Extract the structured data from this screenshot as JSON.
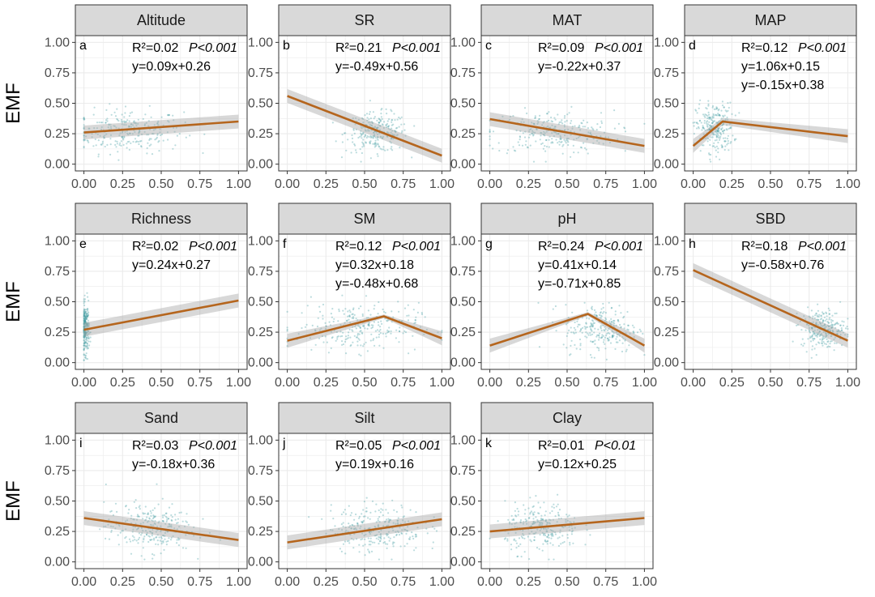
{
  "colors": {
    "point": "#3f9aa0",
    "fit_line": "#b5651d",
    "ci_band": "#a8a8a8",
    "strip_fill": "#d9d9d9",
    "grid": "#ebebeb"
  },
  "y_label": "EMF",
  "chart_data": {
    "type": "scatter",
    "facets": true,
    "x_ticks": [
      "0.00",
      "0.25",
      "0.50",
      "0.75",
      "1.00"
    ],
    "y_ticks": [
      "0.00",
      "0.25",
      "0.50",
      "0.75",
      "1.00"
    ],
    "xlim": [
      0,
      1
    ],
    "ylim": [
      0,
      1
    ],
    "grid": true,
    "panels": [
      {
        "title": "Altitude",
        "letter": "a",
        "r2": "R²=0.02",
        "p": "P<0.001",
        "equations": [
          "y=0.09x+0.26"
        ],
        "fit": [
          [
            0,
            0.26
          ],
          [
            1,
            0.35
          ]
        ],
        "points": {
          "cx": 0.28,
          "sx": 0.18,
          "cy": 0.27,
          "sy": 0.09
        }
      },
      {
        "title": "SR",
        "letter": "b",
        "r2": "R²=0.21",
        "p": "P<0.001",
        "equations": [
          "y=-0.49x+0.56"
        ],
        "fit": [
          [
            0,
            0.56
          ],
          [
            1,
            0.07
          ]
        ],
        "points": {
          "cx": 0.58,
          "sx": 0.1,
          "cy": 0.26,
          "sy": 0.08
        }
      },
      {
        "title": "MAT",
        "letter": "c",
        "r2": "R²=0.09",
        "p": "P<0.001",
        "equations": [
          "y=-0.22x+0.37"
        ],
        "fit": [
          [
            0,
            0.37
          ],
          [
            1,
            0.15
          ]
        ],
        "points": {
          "cx": 0.4,
          "sx": 0.2,
          "cy": 0.26,
          "sy": 0.09
        }
      },
      {
        "title": "MAP",
        "letter": "d",
        "r2": "R²=0.12",
        "p": "P<0.001",
        "equations": [
          "y=1.06x+0.15",
          "y=-0.15x+0.38"
        ],
        "fit": [
          [
            0,
            0.15
          ],
          [
            0.19,
            0.35
          ],
          [
            1,
            0.23
          ]
        ],
        "points": {
          "cx": 0.14,
          "sx": 0.06,
          "cy": 0.3,
          "sy": 0.1
        }
      },
      {
        "title": "Richness",
        "letter": "e",
        "r2": "R²=0.02",
        "p": "P<0.001",
        "equations": [
          "y=0.24x+0.27"
        ],
        "fit": [
          [
            0,
            0.27
          ],
          [
            1,
            0.51
          ]
        ],
        "points": {
          "cx": 0.01,
          "sx": 0.012,
          "cy": 0.28,
          "sy": 0.1
        }
      },
      {
        "title": "SM",
        "letter": "f",
        "r2": "R²=0.12",
        "p": "P<0.001",
        "equations": [
          "y=0.32x+0.18",
          "y=-0.48x+0.68"
        ],
        "fit": [
          [
            0,
            0.18
          ],
          [
            0.625,
            0.38
          ],
          [
            1,
            0.2
          ]
        ],
        "points": {
          "cx": 0.45,
          "sx": 0.2,
          "cy": 0.29,
          "sy": 0.1
        }
      },
      {
        "title": "pH",
        "letter": "g",
        "r2": "R²=0.24",
        "p": "P<0.001",
        "equations": [
          "y=0.41x+0.14",
          "y=-0.71x+0.85"
        ],
        "fit": [
          [
            0,
            0.14
          ],
          [
            0.634,
            0.4
          ],
          [
            1,
            0.14
          ]
        ],
        "points": {
          "cx": 0.72,
          "sx": 0.12,
          "cy": 0.28,
          "sy": 0.1
        }
      },
      {
        "title": "SBD",
        "letter": "h",
        "r2": "R²=0.18",
        "p": "P<0.001",
        "equations": [
          "y=-0.58x+0.76"
        ],
        "fit": [
          [
            0,
            0.76
          ],
          [
            1,
            0.18
          ]
        ],
        "points": {
          "cx": 0.84,
          "sx": 0.07,
          "cy": 0.28,
          "sy": 0.08
        }
      },
      {
        "title": "Sand",
        "letter": "i",
        "r2": "R²=0.03",
        "p": "P<0.001",
        "equations": [
          "y=-0.18x+0.36"
        ],
        "fit": [
          [
            0,
            0.36
          ],
          [
            1,
            0.18
          ]
        ],
        "points": {
          "cx": 0.42,
          "sx": 0.14,
          "cy": 0.28,
          "sy": 0.1
        }
      },
      {
        "title": "Silt",
        "letter": "j",
        "r2": "R²=0.05",
        "p": "P<0.001",
        "equations": [
          "y=0.19x+0.16"
        ],
        "fit": [
          [
            0,
            0.16
          ],
          [
            1,
            0.35
          ]
        ],
        "points": {
          "cx": 0.58,
          "sx": 0.15,
          "cy": 0.28,
          "sy": 0.1
        }
      },
      {
        "title": "Clay",
        "letter": "k",
        "r2": "R²=0.01",
        "p": "P<0.01",
        "equations": [
          "y=0.12x+0.25"
        ],
        "fit": [
          [
            0,
            0.25
          ],
          [
            1,
            0.36
          ]
        ],
        "points": {
          "cx": 0.34,
          "sx": 0.12,
          "cy": 0.28,
          "sy": 0.1
        }
      }
    ]
  }
}
